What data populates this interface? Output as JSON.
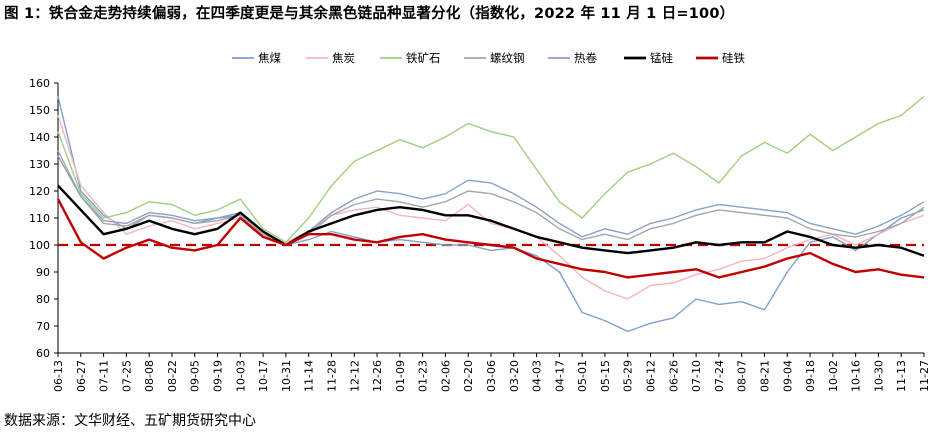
{
  "title": "图 1：铁合金走势持续偏弱，在四季度更是与其余黑色链品种显著分化（指数化，2022 年 11 月 1 日=100）",
  "source": "数据来源：文华财经、五矿期货研究中心",
  "chart_data": {
    "type": "line",
    "x": [
      "06-13",
      "06-27",
      "07-11",
      "07-25",
      "08-08",
      "08-22",
      "09-05",
      "09-19",
      "10-03",
      "10-17",
      "10-31",
      "11-14",
      "11-28",
      "12-12",
      "12-26",
      "01-09",
      "01-23",
      "02-06",
      "02-20",
      "03-06",
      "03-20",
      "04-03",
      "04-17",
      "05-01",
      "05-15",
      "05-29",
      "06-12",
      "06-26",
      "07-10",
      "07-24",
      "08-07",
      "08-21",
      "09-04",
      "09-18",
      "10-02",
      "10-16",
      "10-30",
      "11-13",
      "11-27"
    ],
    "ylim": [
      60,
      160
    ],
    "yticks": [
      60,
      70,
      80,
      90,
      100,
      110,
      120,
      130,
      140,
      150,
      160
    ],
    "reference_line": 100,
    "legend_position": "top",
    "series": [
      {
        "name": "焦煤",
        "color": "#7f9fcf",
        "width": 1.4,
        "values": [
          155,
          120,
          111,
          106,
          111,
          110,
          108,
          110,
          111,
          103,
          100,
          102,
          105,
          103,
          101,
          102,
          101,
          100,
          100,
          98,
          99,
          96,
          90,
          75,
          72,
          68,
          71,
          73,
          80,
          78,
          79,
          76,
          90,
          101,
          103,
          98,
          104,
          110,
          113
        ]
      },
      {
        "name": "焦炭",
        "color": "#f2b6be",
        "width": 1.4,
        "values": [
          148,
          122,
          112,
          104,
          107,
          109,
          106,
          108,
          110,
          104,
          101,
          105,
          111,
          113,
          114,
          111,
          110,
          109,
          115,
          108,
          106,
          103,
          96,
          88,
          83,
          80,
          85,
          86,
          89,
          91,
          94,
          95,
          99,
          102,
          104,
          100,
          104,
          108,
          111
        ]
      },
      {
        "name": "铁矿石",
        "color": "#9fd07f",
        "width": 1.4,
        "values": [
          142,
          119,
          110,
          112,
          116,
          115,
          111,
          113,
          117,
          106,
          101,
          110,
          122,
          131,
          135,
          139,
          136,
          140,
          145,
          142,
          140,
          128,
          116,
          110,
          119,
          127,
          130,
          134,
          129,
          123,
          133,
          138,
          134,
          141,
          135,
          140,
          145,
          148,
          155
        ]
      },
      {
        "name": "螺纹钢",
        "color": "#a6a6a6",
        "width": 1.4,
        "values": [
          135,
          118,
          108,
          107,
          111,
          110,
          108,
          109,
          111,
          104,
          100,
          104,
          111,
          115,
          117,
          116,
          114,
          116,
          120,
          119,
          116,
          112,
          106,
          102,
          104,
          102,
          106,
          108,
          111,
          113,
          112,
          111,
          110,
          106,
          104,
          103,
          105,
          108,
          114
        ]
      },
      {
        "name": "热卷",
        "color": "#8ba0c4",
        "width": 1.4,
        "values": [
          133,
          118,
          109,
          108,
          112,
          111,
          109,
          110,
          112,
          105,
          100,
          105,
          112,
          117,
          120,
          119,
          117,
          119,
          124,
          123,
          119,
          114,
          108,
          103,
          106,
          104,
          108,
          110,
          113,
          115,
          114,
          113,
          112,
          108,
          106,
          104,
          107,
          111,
          116
        ]
      },
      {
        "name": "锰硅",
        "color": "#000000",
        "width": 2.4,
        "values": [
          122,
          113,
          104,
          106,
          109,
          106,
          104,
          106,
          112,
          105,
          100,
          105,
          108,
          111,
          113,
          114,
          113,
          111,
          111,
          109,
          106,
          103,
          101,
          99,
          98,
          97,
          98,
          99,
          101,
          100,
          101,
          101,
          105,
          103,
          100,
          99,
          100,
          99,
          96
        ]
      },
      {
        "name": "硅铁",
        "color": "#c00000",
        "width": 2.4,
        "values": [
          117,
          101,
          95,
          99,
          102,
          99,
          98,
          100,
          110,
          103,
          100,
          104,
          104,
          102,
          101,
          103,
          104,
          102,
          101,
          100,
          99,
          95,
          93,
          91,
          90,
          88,
          89,
          90,
          91,
          88,
          90,
          92,
          95,
          97,
          93,
          90,
          91,
          89,
          88
        ]
      }
    ]
  }
}
